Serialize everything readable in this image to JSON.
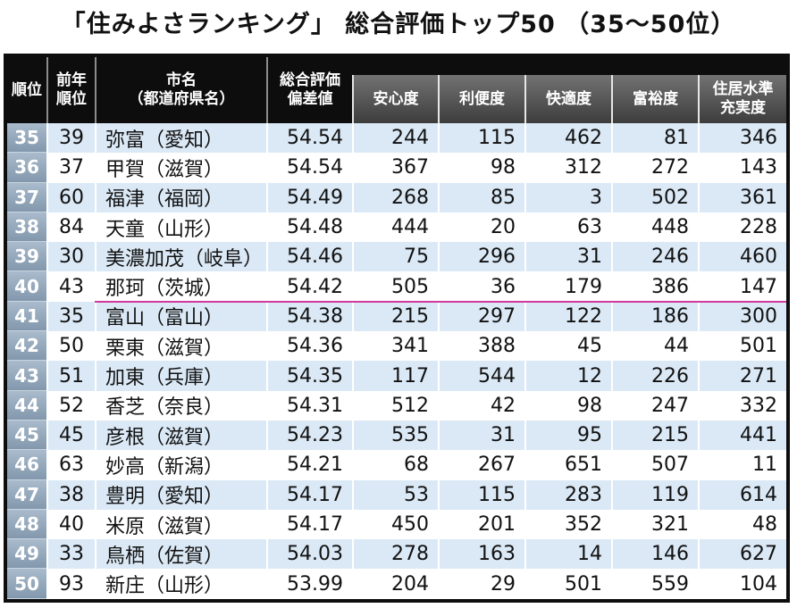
{
  "colors": {
    "header": "#0d0d0d",
    "rank_column": "#8ea3b8",
    "row_stripe": "#dbe9f6",
    "highlight_line": "#d4389e"
  },
  "chart_data": {
    "type": "table",
    "title": "「住みよさランキング」 総合評価トップ50 （35～50位）",
    "columns": [
      "順位",
      "前年\n順位",
      "市名\n（都道府県名）",
      "総合評価\n偏差値",
      "安心度",
      "利便度",
      "快適度",
      "富裕度",
      "住居水準\n充実度"
    ],
    "rows": [
      [
        35,
        39,
        "弥富（愛知）",
        54.54,
        244,
        115,
        462,
        81,
        346
      ],
      [
        36,
        37,
        "甲賀（滋賀）",
        54.54,
        367,
        98,
        312,
        272,
        143
      ],
      [
        37,
        60,
        "福津（福岡）",
        54.49,
        268,
        85,
        3,
        502,
        361
      ],
      [
        38,
        84,
        "天童（山形）",
        54.48,
        444,
        20,
        63,
        448,
        228
      ],
      [
        39,
        30,
        "美濃加茂（岐阜）",
        54.46,
        75,
        296,
        31,
        246,
        460
      ],
      [
        40,
        43,
        "那珂（茨城）",
        54.42,
        505,
        36,
        179,
        386,
        147
      ],
      [
        41,
        35,
        "富山（富山）",
        54.38,
        215,
        297,
        122,
        186,
        300
      ],
      [
        42,
        50,
        "栗東（滋賀）",
        54.36,
        341,
        388,
        45,
        44,
        501
      ],
      [
        43,
        51,
        "加東（兵庫）",
        54.35,
        117,
        544,
        12,
        226,
        271
      ],
      [
        44,
        52,
        "香芝（奈良）",
        54.31,
        512,
        42,
        98,
        247,
        332
      ],
      [
        45,
        45,
        "彦根（滋賀）",
        54.23,
        535,
        31,
        95,
        215,
        441
      ],
      [
        46,
        63,
        "妙高（新潟）",
        54.21,
        68,
        267,
        651,
        507,
        11
      ],
      [
        47,
        38,
        "豊明（愛知）",
        54.17,
        53,
        115,
        283,
        119,
        614
      ],
      [
        48,
        40,
        "米原（滋賀）",
        54.17,
        450,
        201,
        352,
        321,
        48
      ],
      [
        49,
        33,
        "鳥栖（佐賀）",
        54.03,
        278,
        163,
        14,
        146,
        627
      ],
      [
        50,
        93,
        "新庄（山形）",
        53.99,
        204,
        29,
        501,
        559,
        104
      ]
    ]
  }
}
